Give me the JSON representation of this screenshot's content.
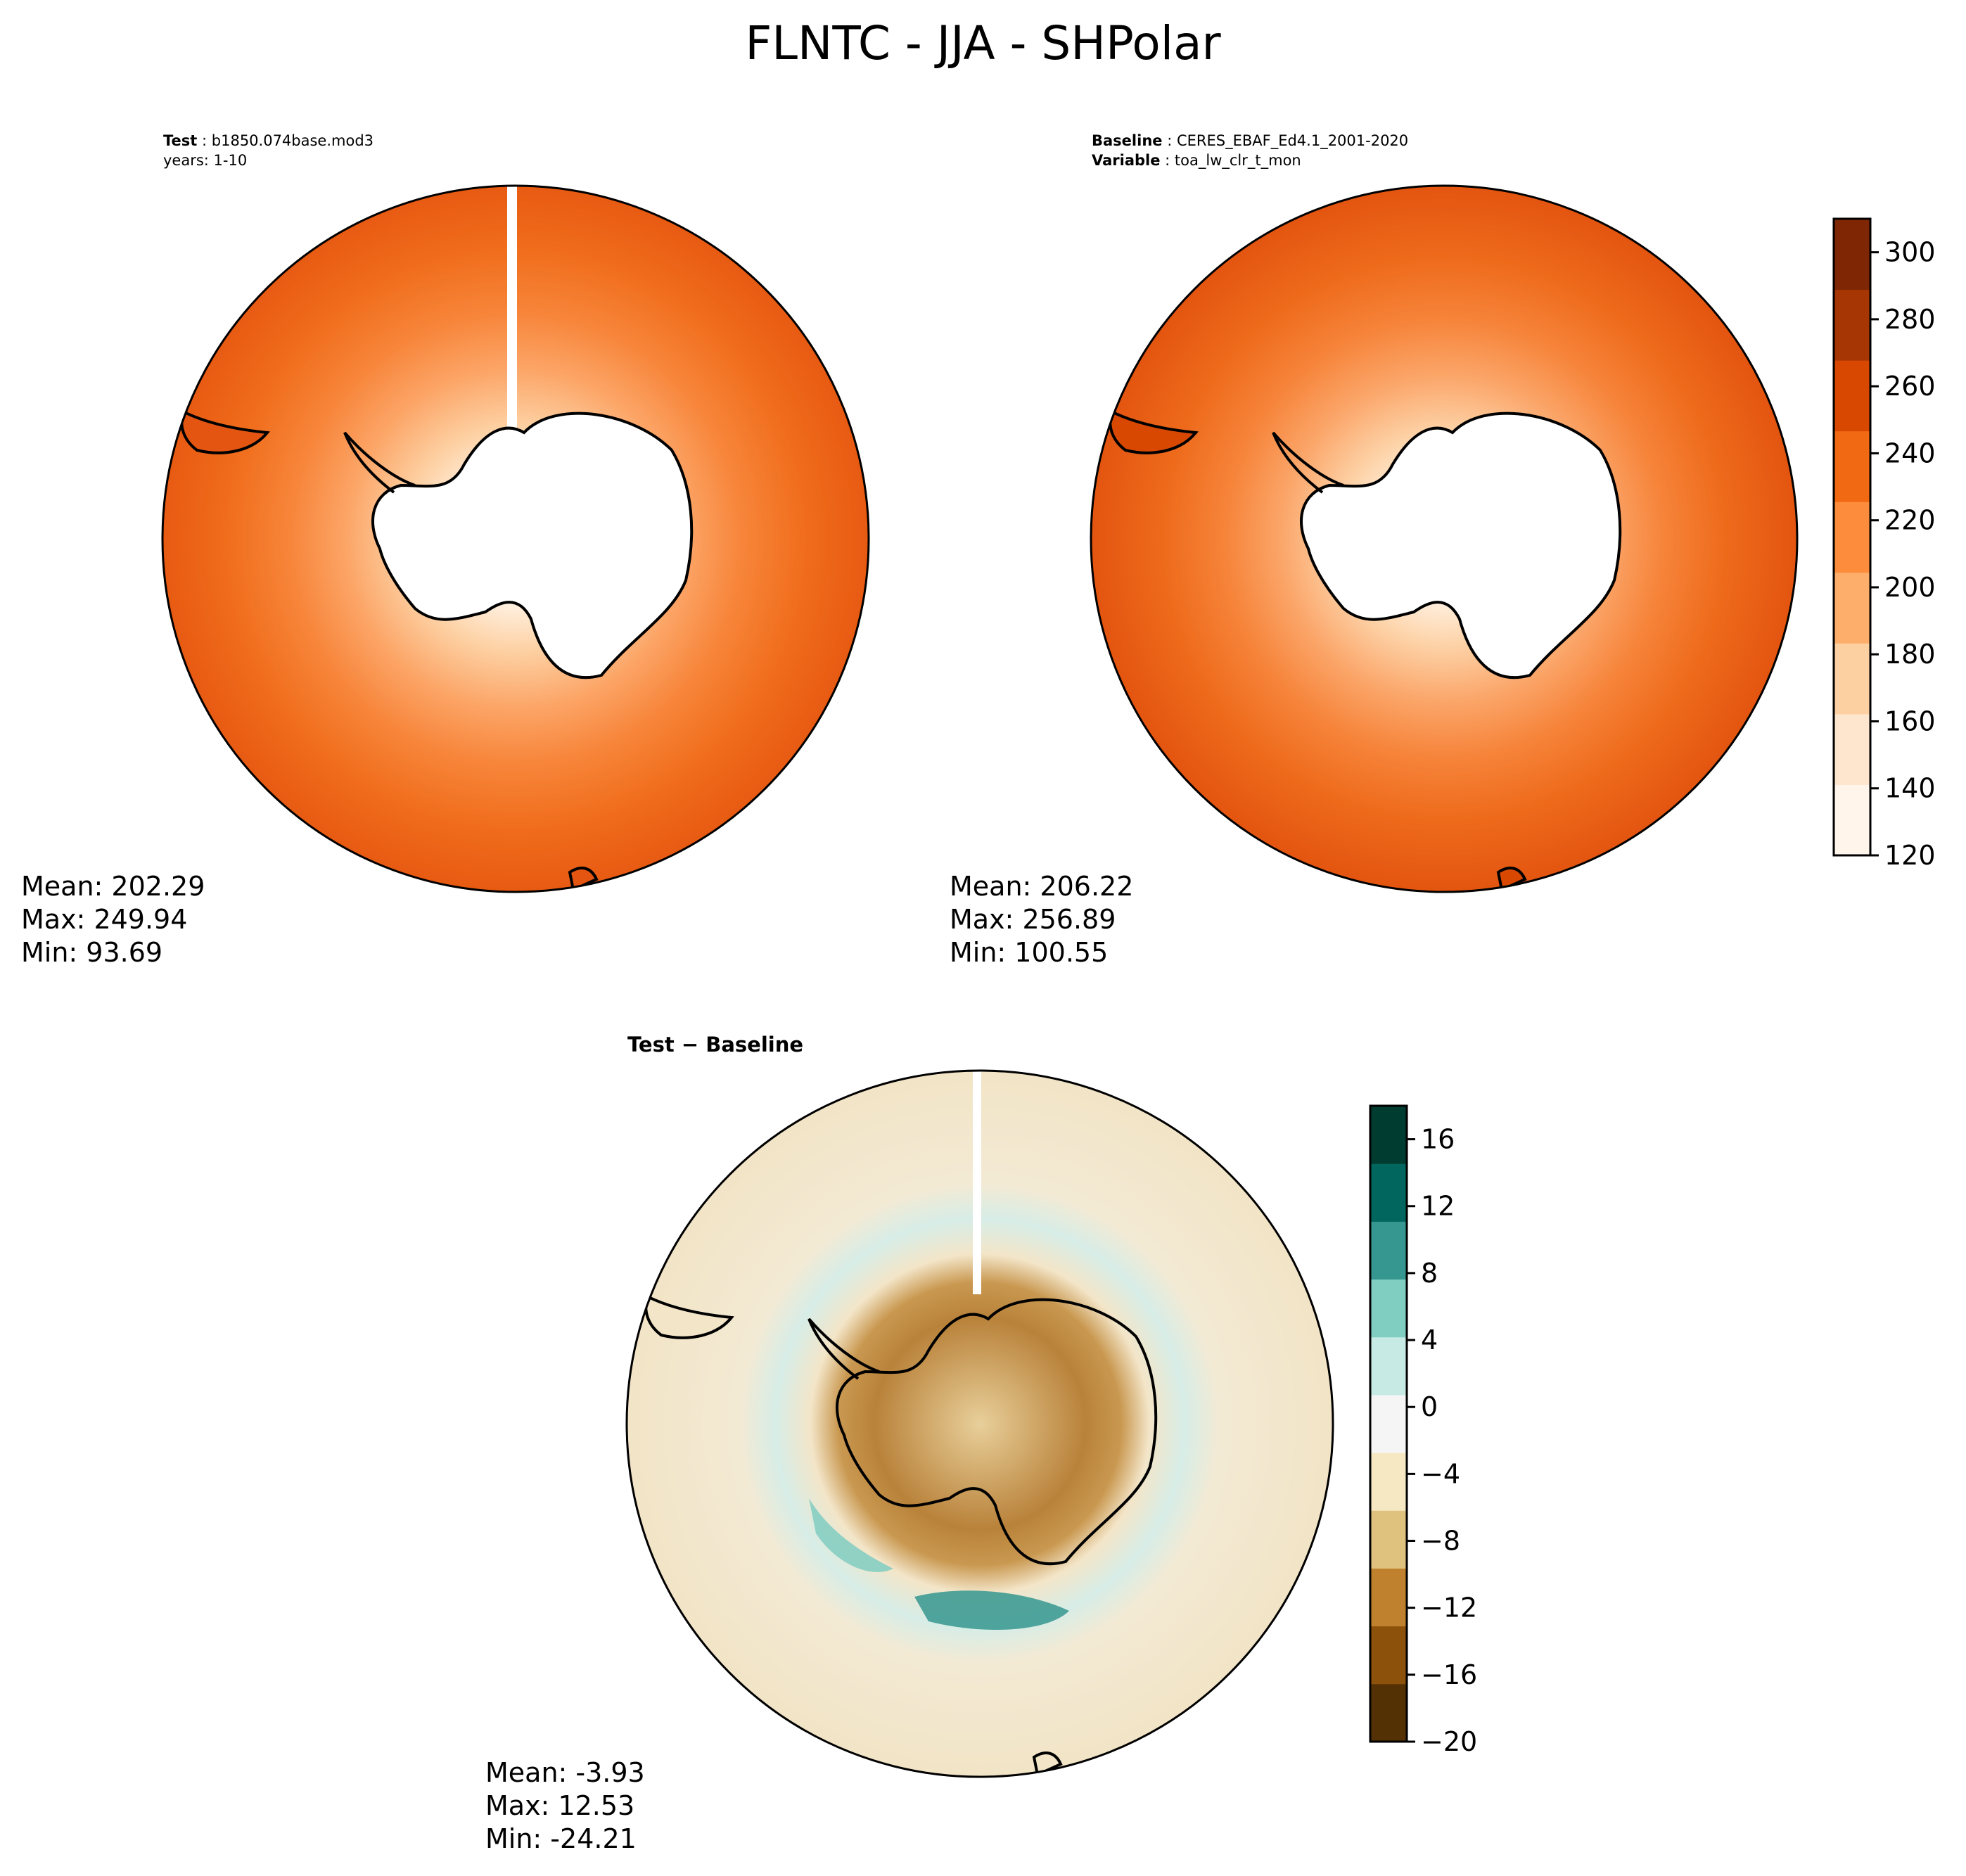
{
  "title": "FLNTC - JJA - SHPolar",
  "panels": {
    "test": {
      "label_key": "Test",
      "label_value": "b1850.074base.mod3",
      "line2": "years: 1-10",
      "mean": "Mean: 202.29",
      "max": "Max: 249.94",
      "min": "Min: 93.69"
    },
    "baseline": {
      "label_key": "Baseline",
      "label_value": "CERES_EBAF_Ed4.1_2001-2020",
      "line2_key": "Variable",
      "line2_value": "toa_lw_clr_t_mon",
      "mean": "Mean: 206.22",
      "max": "Max: 256.89",
      "min": "Min: 100.55"
    },
    "diff": {
      "title": "Test − Baseline",
      "mean": "Mean: -3.93",
      "max": "Max: 12.53",
      "min": "Min: -24.21"
    }
  },
  "colorbars": {
    "main": {
      "ticks": [
        "120",
        "140",
        "160",
        "180",
        "200",
        "220",
        "240",
        "260",
        "280",
        "300"
      ],
      "range": [
        120,
        310
      ],
      "colors": [
        "#fff5eb",
        "#fee6ce",
        "#fdd0a2",
        "#fdae6b",
        "#fd8d3c",
        "#f16913",
        "#d94801",
        "#a63603",
        "#7f2704"
      ]
    },
    "diff": {
      "ticks": [
        "−20",
        "−16",
        "−12",
        "−8",
        "−4",
        "0",
        "4",
        "8",
        "12",
        "16"
      ],
      "range": [
        -20,
        18
      ],
      "colors": [
        "#543005",
        "#8c510a",
        "#bf812d",
        "#dfc27d",
        "#f6e8c3",
        "#f5f5f5",
        "#c7eae5",
        "#80cdc1",
        "#35978f",
        "#01665e",
        "#003c30"
      ]
    }
  },
  "map_colors": {
    "ocean_outer": "#e85a12",
    "ice_center": "#ffffff",
    "diff_background": "#f3e5c8",
    "coastline": "#000000"
  }
}
